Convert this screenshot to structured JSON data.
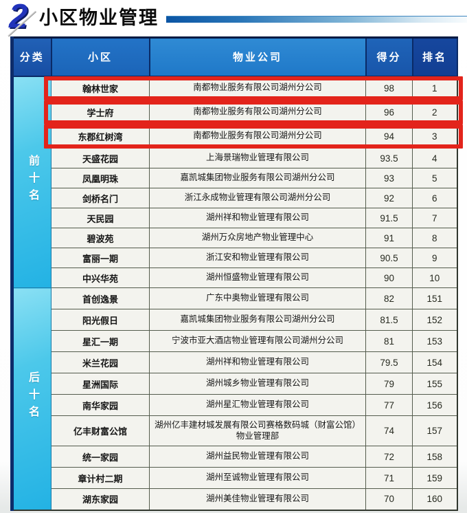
{
  "page": {
    "section_number": "2",
    "title": "小区物业管理"
  },
  "colors": {
    "accent_red_highlight": "#e3241b",
    "header_blue": "#1f78c8",
    "category_cyan": "#23b2e4",
    "title_numeral_blue": "#2133bb"
  },
  "chart_data": {
    "type": "table",
    "title": "小区物业管理",
    "columns": [
      "分类",
      "小区",
      "物业公司",
      "得分",
      "排名"
    ],
    "groups": [
      {
        "category": "前十名",
        "rows": [
          {
            "community": "翰林世家",
            "company": "南都物业服务有限公司湖州分公司",
            "score": 98,
            "rank": 1,
            "highlighted": true
          },
          {
            "community": "学士府",
            "company": "南都物业服务有限公司湖州分公司",
            "score": 96,
            "rank": 2,
            "highlighted": true
          },
          {
            "community": "东郡红树湾",
            "company": "南都物业服务有限公司湖州分公司",
            "score": 94,
            "rank": 3,
            "highlighted": true
          },
          {
            "community": "天盛花园",
            "company": "上海景瑞物业管理有限公司",
            "score": 93.5,
            "rank": 4,
            "highlighted": false
          },
          {
            "community": "凤凰明珠",
            "company": "嘉凯城集团物业服务有限公司湖州分公司",
            "score": 93,
            "rank": 5,
            "highlighted": false
          },
          {
            "community": "剑桥名门",
            "company": "浙江永成物业管理有限公司湖州分公司",
            "score": 92,
            "rank": 6,
            "highlighted": false
          },
          {
            "community": "天民园",
            "company": "湖州祥和物业管理有限公司",
            "score": 91.5,
            "rank": 7,
            "highlighted": false
          },
          {
            "community": "碧波苑",
            "company": "湖州万众房地产物业管理中心",
            "score": 91,
            "rank": 8,
            "highlighted": false
          },
          {
            "community": "富丽一期",
            "company": "浙江安和物业管理有限公司",
            "score": 90.5,
            "rank": 9,
            "highlighted": false
          },
          {
            "community": "中兴华苑",
            "company": "湖州恒盛物业管理有限公司",
            "score": 90,
            "rank": 10,
            "highlighted": false
          }
        ]
      },
      {
        "category": "后十名",
        "rows": [
          {
            "community": "首创逸景",
            "company": "广东中奥物业管理有限公司",
            "score": 82,
            "rank": 151,
            "highlighted": false
          },
          {
            "community": "阳光假日",
            "company": "嘉凯城集团物业服务有限公司湖州分公司",
            "score": 81.5,
            "rank": 152,
            "highlighted": false
          },
          {
            "community": "星汇一期",
            "company": "宁波市亚大酒店物业管理有限公司湖州分公司",
            "score": 81,
            "rank": 153,
            "highlighted": false
          },
          {
            "community": "米兰花园",
            "company": "湖州祥和物业管理有限公司",
            "score": 79.5,
            "rank": 154,
            "highlighted": false
          },
          {
            "community": "星洲国际",
            "company": "湖州城乡物业管理有限公司",
            "score": 79,
            "rank": 155,
            "highlighted": false
          },
          {
            "community": "南华家园",
            "company": "湖州星汇物业管理有限公司",
            "score": 77,
            "rank": 156,
            "highlighted": false
          },
          {
            "community": "亿丰财富公馆",
            "company": "湖州亿丰建材城发展有限公司赛格数码城（财富公馆）物业管理部",
            "score": 74,
            "rank": 157,
            "highlighted": false
          },
          {
            "community": "统一家园",
            "company": "湖州益民物业管理有限公司",
            "score": 72,
            "rank": 158,
            "highlighted": false
          },
          {
            "community": "章计村二期",
            "company": "湖州至诚物业管理有限公司",
            "score": 71,
            "rank": 159,
            "highlighted": false
          },
          {
            "community": "湖东家园",
            "company": "湖州美佳物业管理有限公司",
            "score": 70,
            "rank": 160,
            "highlighted": false
          }
        ]
      }
    ]
  }
}
